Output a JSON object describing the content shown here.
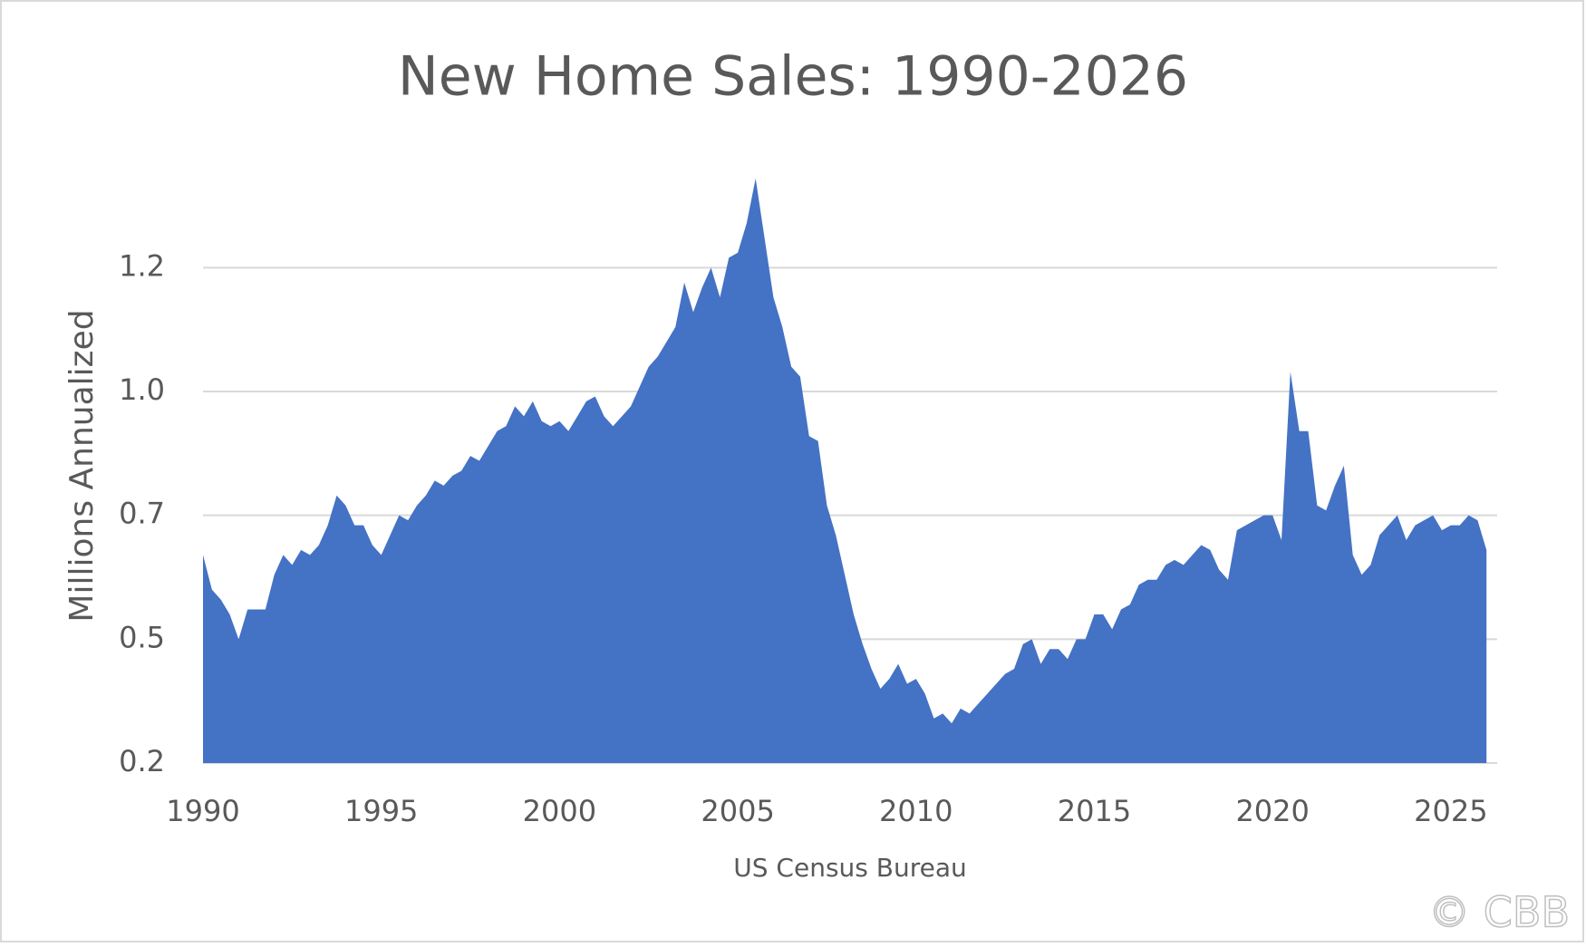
{
  "chart_data": {
    "type": "area",
    "title": "New Home Sales: 1990-2026",
    "y_label": "Millions Annualized",
    "x_label": "US Census Bureau",
    "watermark": "© CBB",
    "color": "#4472c4",
    "grid": true,
    "xlim": [
      1990,
      2026.3
    ],
    "xticks": [
      1990,
      1995,
      2000,
      2005,
      2010,
      2015,
      2020,
      2025
    ],
    "ylim": [
      0.2,
      1.4
    ],
    "yticks": [
      0.2,
      {
        "value": 0.45,
        "label": "0.5"
      },
      0.7,
      {
        "value": 0.95,
        "label": "1.0"
      },
      1.2
    ],
    "x": [
      1990,
      1990.25,
      1990.5,
      1990.75,
      1991,
      1991.25,
      1991.5,
      1991.75,
      1992,
      1992.25,
      1992.5,
      1992.75,
      1993,
      1993.25,
      1993.5,
      1993.75,
      1994,
      1994.25,
      1994.5,
      1994.75,
      1995,
      1995.25,
      1995.5,
      1995.75,
      1996,
      1996.25,
      1996.5,
      1996.75,
      1997,
      1997.25,
      1997.5,
      1997.75,
      1998,
      1998.25,
      1998.5,
      1998.75,
      1999,
      1999.25,
      1999.5,
      1999.75,
      2000,
      2000.25,
      2000.5,
      2000.75,
      2001,
      2001.25,
      2001.5,
      2001.75,
      2002,
      2002.25,
      2002.5,
      2002.75,
      2003,
      2003.25,
      2003.5,
      2003.75,
      2004,
      2004.25,
      2004.5,
      2004.75,
      2005,
      2005.25,
      2005.5,
      2005.75,
      2006,
      2006.25,
      2006.5,
      2006.75,
      2007,
      2007.25,
      2007.5,
      2007.75,
      2008,
      2008.25,
      2008.5,
      2008.75,
      2009,
      2009.25,
      2009.5,
      2009.75,
      2010,
      2010.25,
      2010.5,
      2010.75,
      2011,
      2011.25,
      2011.5,
      2011.75,
      2012,
      2012.25,
      2012.5,
      2012.75,
      2013,
      2013.25,
      2013.5,
      2013.75,
      2014,
      2014.25,
      2014.5,
      2014.75,
      2015,
      2015.25,
      2015.5,
      2015.75,
      2016,
      2016.25,
      2016.5,
      2016.75,
      2017,
      2017.25,
      2017.5,
      2017.75,
      2018,
      2018.25,
      2018.5,
      2018.75,
      2019,
      2019.25,
      2019.5,
      2019.75,
      2020,
      2020.25,
      2020.5,
      2020.75,
      2021,
      2021.25,
      2021.5,
      2021.75,
      2022,
      2022.25,
      2022.5,
      2022.75,
      2023,
      2023.25,
      2023.5,
      2023.75,
      2024,
      2024.25,
      2024.5,
      2024.75,
      2025,
      2025.25,
      2025.5,
      2025.75,
      2026
    ],
    "values": [
      0.62,
      0.55,
      0.53,
      0.5,
      0.45,
      0.51,
      0.51,
      0.51,
      0.58,
      0.62,
      0.6,
      0.63,
      0.62,
      0.64,
      0.68,
      0.74,
      0.72,
      0.68,
      0.68,
      0.64,
      0.62,
      0.66,
      0.7,
      0.69,
      0.72,
      0.74,
      0.77,
      0.76,
      0.78,
      0.79,
      0.82,
      0.81,
      0.84,
      0.87,
      0.88,
      0.92,
      0.9,
      0.93,
      0.89,
      0.88,
      0.89,
      0.87,
      0.9,
      0.93,
      0.94,
      0.9,
      0.88,
      0.9,
      0.92,
      0.96,
      1.0,
      1.02,
      1.05,
      1.08,
      1.17,
      1.11,
      1.16,
      1.2,
      1.14,
      1.22,
      1.23,
      1.29,
      1.38,
      1.26,
      1.14,
      1.08,
      1.0,
      0.98,
      0.86,
      0.85,
      0.72,
      0.66,
      0.58,
      0.5,
      0.44,
      0.39,
      0.35,
      0.37,
      0.4,
      0.36,
      0.37,
      0.34,
      0.29,
      0.3,
      0.28,
      0.31,
      0.3,
      0.32,
      0.34,
      0.36,
      0.38,
      0.39,
      0.44,
      0.45,
      0.4,
      0.43,
      0.43,
      0.41,
      0.45,
      0.45,
      0.5,
      0.5,
      0.47,
      0.51,
      0.52,
      0.56,
      0.57,
      0.57,
      0.6,
      0.61,
      0.6,
      0.62,
      0.64,
      0.63,
      0.59,
      0.57,
      0.67,
      0.68,
      0.69,
      0.7,
      0.7,
      0.65,
      0.99,
      0.87,
      0.87,
      0.72,
      0.71,
      0.76,
      0.8,
      0.62,
      0.58,
      0.6,
      0.66,
      0.68,
      0.7,
      0.65,
      0.68,
      0.69,
      0.7,
      0.67,
      0.68,
      0.68,
      0.7,
      0.69,
      0.63
    ]
  }
}
